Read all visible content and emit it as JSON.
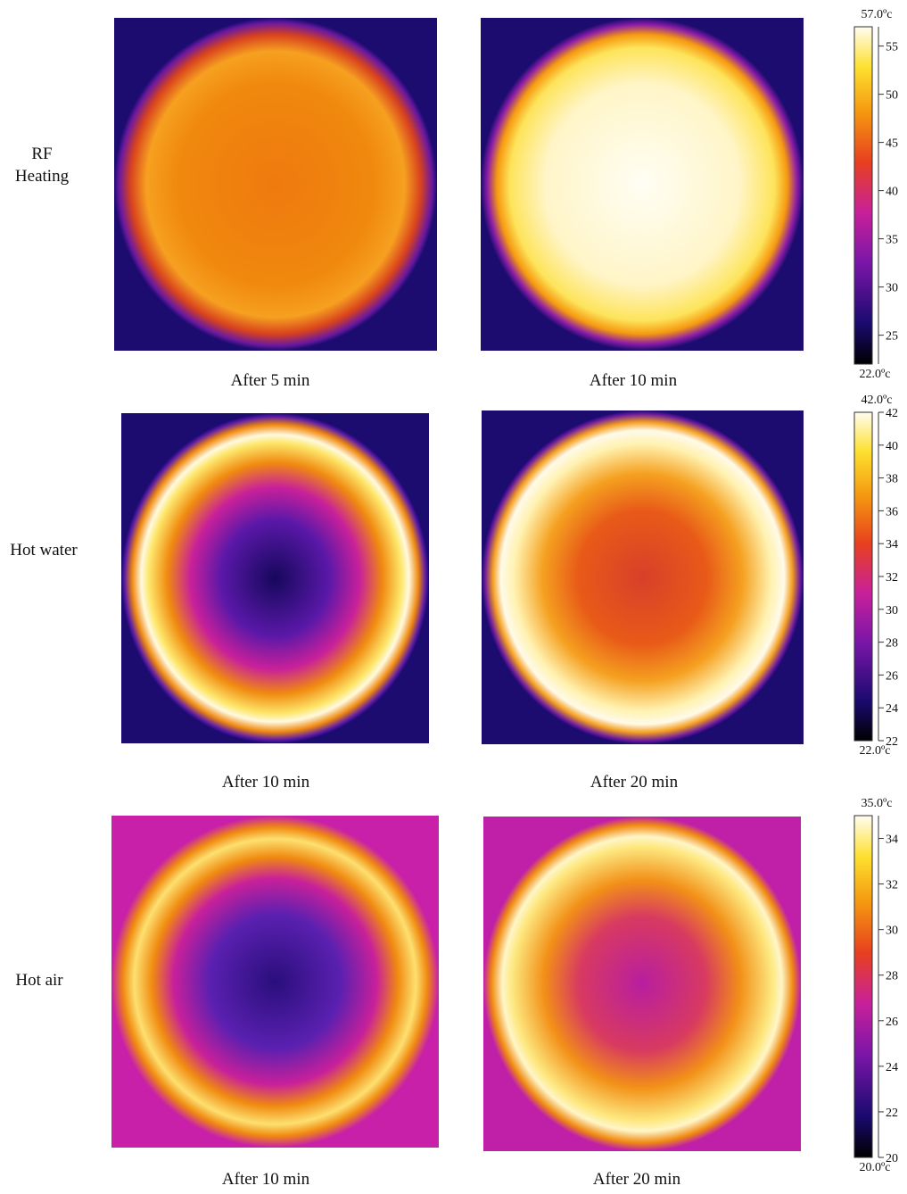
{
  "rows": [
    {
      "label": "RF\nHeating",
      "images": [
        {
          "caption": "After 5 min"
        },
        {
          "caption": "After 10 min"
        }
      ],
      "colorbar": {
        "max_label": "57.0ºc",
        "min_label": "22.0ºc",
        "range": [
          22,
          57
        ],
        "ticks": [
          25,
          30,
          35,
          40,
          45,
          50,
          55
        ]
      }
    },
    {
      "label": "Hot water",
      "images": [
        {
          "caption": "After 10 min"
        },
        {
          "caption": "After 20 min"
        }
      ],
      "colorbar": {
        "max_label": "42.0ºc",
        "min_label": "22.0ºc",
        "range": [
          22,
          42
        ],
        "ticks": [
          22,
          24,
          26,
          28,
          30,
          32,
          34,
          36,
          38,
          40,
          42
        ]
      }
    },
    {
      "label": "Hot air",
      "images": [
        {
          "caption": "After 10 min"
        },
        {
          "caption": "After 20 min"
        }
      ],
      "colorbar": {
        "max_label": "35.0ºc",
        "min_label": "20.0ºc",
        "range": [
          20,
          35
        ],
        "ticks": [
          20,
          22,
          24,
          26,
          28,
          30,
          32,
          34
        ]
      }
    }
  ]
}
